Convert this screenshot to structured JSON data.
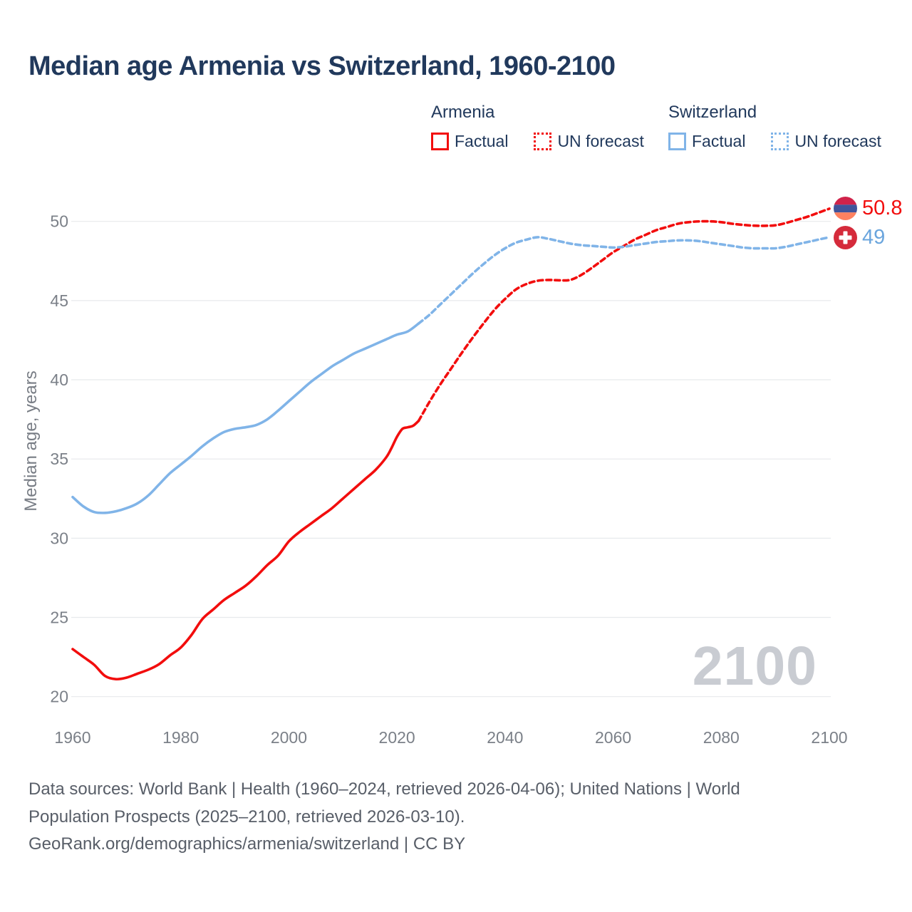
{
  "title": "Median age Armenia vs Switzerland, 1960-2100",
  "colors": {
    "armenia": "#f20d0d",
    "switzerland": "#80b4e8",
    "switzerland_text": "#6aa5dd",
    "title_text": "#21395c",
    "axis_text": "#7b8088",
    "footer_text": "#585e68",
    "gridline": "#e7e9ec",
    "watermark": "#c9ccd2"
  },
  "legend": {
    "groups": [
      {
        "name": "Armenia",
        "color": "#f20d0d",
        "items": [
          {
            "label": "Factual",
            "style": "solid"
          },
          {
            "label": "UN forecast",
            "style": "dotted"
          }
        ]
      },
      {
        "name": "Switzerland",
        "color": "#80b4e8",
        "items": [
          {
            "label": "Factual",
            "style": "solid"
          },
          {
            "label": "UN forecast",
            "style": "dotted"
          }
        ]
      }
    ]
  },
  "watermark": "2100",
  "end_labels": [
    {
      "series": "Armenia",
      "value": "50.8",
      "flag": "armenia-flag-icon"
    },
    {
      "series": "Switzerland",
      "value": "49",
      "flag": "switzerland-flag-icon"
    }
  ],
  "footer": {
    "line1": "Data sources: World Bank | Health (1960–2024, retrieved 2026-04-06); United Nations | World",
    "line2": "Population Prospects (2025–2100, retrieved 2026-03-10).",
    "line3": "GeoRank.org/demographics/armenia/switzerland | CC BY"
  },
  "chart_data": {
    "type": "line",
    "title": "Median age Armenia vs Switzerland, 1960-2100",
    "xlabel": "",
    "ylabel": "Median age, years",
    "xlim": [
      1960,
      2100
    ],
    "ylim": [
      20,
      50
    ],
    "x_ticks": [
      1960,
      1980,
      2000,
      2020,
      2040,
      2060,
      2080,
      2100
    ],
    "y_ticks": [
      20,
      25,
      30,
      35,
      40,
      45,
      50
    ],
    "grid": "horizontal",
    "legend_position": "top",
    "forecast_start_year": 2024,
    "series": [
      {
        "name": "Armenia Factual",
        "id": "armenia-factual",
        "color": "#f20d0d",
        "style": "solid",
        "points": [
          [
            1960,
            23.0
          ],
          [
            1962,
            22.5
          ],
          [
            1964,
            22.0
          ],
          [
            1966,
            21.3
          ],
          [
            1968,
            21.1
          ],
          [
            1970,
            21.2
          ],
          [
            1972,
            21.45
          ],
          [
            1974,
            21.7
          ],
          [
            1976,
            22.05
          ],
          [
            1978,
            22.6
          ],
          [
            1980,
            23.1
          ],
          [
            1982,
            23.9
          ],
          [
            1984,
            24.9
          ],
          [
            1986,
            25.5
          ],
          [
            1988,
            26.1
          ],
          [
            1990,
            26.55
          ],
          [
            1992,
            27.0
          ],
          [
            1994,
            27.6
          ],
          [
            1996,
            28.3
          ],
          [
            1998,
            28.9
          ],
          [
            2000,
            29.8
          ],
          [
            2002,
            30.4
          ],
          [
            2004,
            30.9
          ],
          [
            2006,
            31.4
          ],
          [
            2008,
            31.9
          ],
          [
            2010,
            32.5
          ],
          [
            2012,
            33.1
          ],
          [
            2014,
            33.7
          ],
          [
            2016,
            34.3
          ],
          [
            2018,
            35.1
          ],
          [
            2019,
            35.7
          ],
          [
            2020,
            36.4
          ],
          [
            2021,
            36.9
          ],
          [
            2022,
            37.0
          ],
          [
            2023,
            37.1
          ],
          [
            2024,
            37.4
          ]
        ]
      },
      {
        "name": "Armenia UN forecast",
        "id": "armenia-forecast",
        "color": "#f20d0d",
        "style": "dashed",
        "points": [
          [
            2024,
            37.4
          ],
          [
            2026,
            38.6
          ],
          [
            2028,
            39.7
          ],
          [
            2030,
            40.7
          ],
          [
            2032,
            41.7
          ],
          [
            2034,
            42.65
          ],
          [
            2036,
            43.55
          ],
          [
            2038,
            44.4
          ],
          [
            2040,
            45.1
          ],
          [
            2042,
            45.7
          ],
          [
            2044,
            46.05
          ],
          [
            2046,
            46.25
          ],
          [
            2048,
            46.3
          ],
          [
            2050,
            46.28
          ],
          [
            2052,
            46.3
          ],
          [
            2054,
            46.6
          ],
          [
            2056,
            47.05
          ],
          [
            2058,
            47.55
          ],
          [
            2060,
            48.05
          ],
          [
            2062,
            48.45
          ],
          [
            2064,
            48.85
          ],
          [
            2066,
            49.15
          ],
          [
            2068,
            49.45
          ],
          [
            2070,
            49.65
          ],
          [
            2072,
            49.85
          ],
          [
            2074,
            49.95
          ],
          [
            2076,
            50.0
          ],
          [
            2078,
            50.0
          ],
          [
            2080,
            49.95
          ],
          [
            2082,
            49.85
          ],
          [
            2084,
            49.78
          ],
          [
            2086,
            49.73
          ],
          [
            2088,
            49.72
          ],
          [
            2090,
            49.75
          ],
          [
            2092,
            49.9
          ],
          [
            2094,
            50.1
          ],
          [
            2096,
            50.3
          ],
          [
            2098,
            50.55
          ],
          [
            2100,
            50.8
          ]
        ]
      },
      {
        "name": "Switzerland Factual",
        "id": "switzerland-factual",
        "color": "#80b4e8",
        "style": "solid",
        "points": [
          [
            1960,
            32.6
          ],
          [
            1962,
            32.0
          ],
          [
            1964,
            31.65
          ],
          [
            1966,
            31.6
          ],
          [
            1968,
            31.7
          ],
          [
            1970,
            31.9
          ],
          [
            1972,
            32.2
          ],
          [
            1974,
            32.7
          ],
          [
            1976,
            33.4
          ],
          [
            1978,
            34.1
          ],
          [
            1980,
            34.65
          ],
          [
            1982,
            35.2
          ],
          [
            1984,
            35.8
          ],
          [
            1986,
            36.3
          ],
          [
            1988,
            36.7
          ],
          [
            1990,
            36.9
          ],
          [
            1992,
            37.0
          ],
          [
            1994,
            37.15
          ],
          [
            1996,
            37.5
          ],
          [
            1998,
            38.05
          ],
          [
            2000,
            38.65
          ],
          [
            2002,
            39.25
          ],
          [
            2004,
            39.85
          ],
          [
            2006,
            40.35
          ],
          [
            2008,
            40.85
          ],
          [
            2010,
            41.25
          ],
          [
            2012,
            41.65
          ],
          [
            2014,
            41.95
          ],
          [
            2016,
            42.25
          ],
          [
            2018,
            42.55
          ],
          [
            2020,
            42.85
          ],
          [
            2022,
            43.05
          ],
          [
            2024,
            43.55
          ]
        ]
      },
      {
        "name": "Switzerland UN forecast",
        "id": "switzerland-forecast",
        "color": "#80b4e8",
        "style": "dashed",
        "points": [
          [
            2024,
            43.55
          ],
          [
            2026,
            44.1
          ],
          [
            2028,
            44.75
          ],
          [
            2030,
            45.4
          ],
          [
            2032,
            46.05
          ],
          [
            2034,
            46.7
          ],
          [
            2036,
            47.3
          ],
          [
            2038,
            47.85
          ],
          [
            2040,
            48.3
          ],
          [
            2042,
            48.65
          ],
          [
            2044,
            48.85
          ],
          [
            2046,
            49.0
          ],
          [
            2048,
            48.9
          ],
          [
            2050,
            48.75
          ],
          [
            2052,
            48.6
          ],
          [
            2054,
            48.5
          ],
          [
            2056,
            48.45
          ],
          [
            2058,
            48.4
          ],
          [
            2060,
            48.35
          ],
          [
            2062,
            48.4
          ],
          [
            2064,
            48.5
          ],
          [
            2066,
            48.6
          ],
          [
            2068,
            48.7
          ],
          [
            2070,
            48.75
          ],
          [
            2072,
            48.8
          ],
          [
            2074,
            48.8
          ],
          [
            2076,
            48.75
          ],
          [
            2078,
            48.65
          ],
          [
            2080,
            48.55
          ],
          [
            2082,
            48.45
          ],
          [
            2084,
            48.35
          ],
          [
            2086,
            48.3
          ],
          [
            2088,
            48.3
          ],
          [
            2090,
            48.3
          ],
          [
            2092,
            48.4
          ],
          [
            2094,
            48.55
          ],
          [
            2096,
            48.7
          ],
          [
            2098,
            48.85
          ],
          [
            2100,
            49.0
          ]
        ]
      }
    ]
  }
}
